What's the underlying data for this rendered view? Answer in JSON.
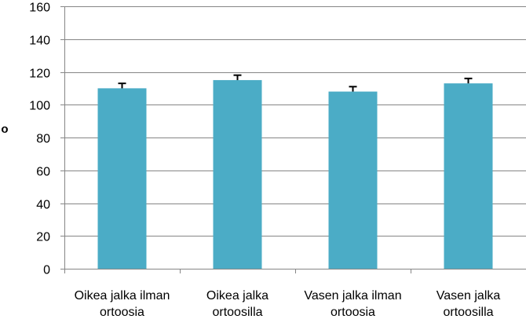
{
  "chart_data": {
    "type": "bar",
    "categories": [
      [
        "Oikea jalka ilman",
        "ortoosia"
      ],
      [
        "Oikea jalka",
        "ortoosilla"
      ],
      [
        "Vasen jalka ilman",
        "ortoosia"
      ],
      [
        "Vasen jalka",
        "ortoosilla"
      ]
    ],
    "series": [
      {
        "values": [
          110,
          115,
          108,
          113
        ],
        "errors": [
          3,
          3,
          3,
          3
        ]
      }
    ],
    "title": "",
    "xlabel": "",
    "ylabel": "o",
    "ylim": [
      0,
      160
    ],
    "yticks": [
      "0",
      "20",
      "40",
      "60",
      "80",
      "100",
      "120",
      "140",
      "160"
    ],
    "grid": true,
    "legend": "none",
    "colors": {
      "bar": "#4BACC6",
      "grid": "#868686",
      "axis": "#868686",
      "errorbar": "#000000"
    }
  }
}
